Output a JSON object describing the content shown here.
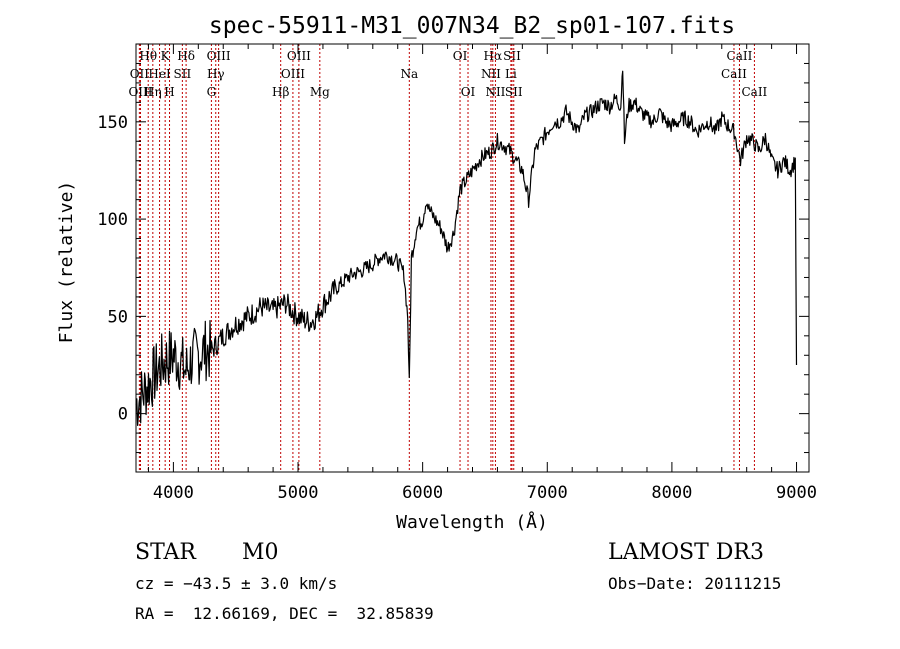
{
  "chart_data": {
    "type": "line",
    "title": "spec-55911-M31_007N34_B2_sp01-107.fits",
    "xlabel": "Wavelength (Å)",
    "ylabel": "Flux (relative)",
    "xlim": [
      3700,
      9100
    ],
    "ylim": [
      -30,
      190
    ],
    "xticks": [
      4000,
      5000,
      6000,
      7000,
      8000,
      9000
    ],
    "yticks": [
      0,
      50,
      100,
      150
    ],
    "series": [
      {
        "name": "flux",
        "x": [
          3700,
          3750,
          3800,
          3850,
          3900,
          3950,
          4000,
          4050,
          4100,
          4150,
          4200,
          4250,
          4300,
          4350,
          4400,
          4450,
          4500,
          4550,
          4600,
          4650,
          4700,
          4750,
          4800,
          4850,
          4900,
          4950,
          5000,
          5050,
          5100,
          5150,
          5200,
          5250,
          5300,
          5350,
          5400,
          5450,
          5500,
          5550,
          5600,
          5650,
          5700,
          5750,
          5800,
          5850,
          5880,
          5893,
          5910,
          5950,
          6000,
          6030,
          6050,
          6100,
          6150,
          6200,
          6250,
          6300,
          6350,
          6400,
          6450,
          6500,
          6550,
          6600,
          6650,
          6700,
          6750,
          6800,
          6850,
          6900,
          6950,
          7000,
          7050,
          7100,
          7150,
          7200,
          7250,
          7300,
          7350,
          7400,
          7450,
          7500,
          7550,
          7590,
          7605,
          7620,
          7650,
          7700,
          7750,
          7800,
          7850,
          7900,
          7950,
          8000,
          8050,
          8100,
          8150,
          8200,
          8250,
          8300,
          8350,
          8400,
          8450,
          8500,
          8550,
          8600,
          8650,
          8700,
          8750,
          8800,
          8850,
          8900,
          8950,
          8990,
          9000
        ],
        "y": [
          5,
          10,
          15,
          20,
          25,
          28,
          30,
          27,
          22,
          28,
          30,
          33,
          32,
          36,
          40,
          43,
          46,
          48,
          50,
          52,
          55,
          54,
          53,
          55,
          57,
          53,
          50,
          48,
          47,
          50,
          56,
          60,
          64,
          67,
          70,
          72,
          73,
          75,
          77,
          80,
          82,
          80,
          78,
          72,
          50,
          15,
          80,
          95,
          100,
          110,
          105,
          100,
          95,
          85,
          93,
          115,
          120,
          125,
          130,
          133,
          135,
          140,
          138,
          135,
          130,
          125,
          110,
          135,
          140,
          145,
          150,
          150,
          155,
          150,
          145,
          153,
          155,
          158,
          160,
          158,
          162,
          158,
          180,
          140,
          158,
          160,
          155,
          152,
          150,
          155,
          150,
          148,
          150,
          152,
          150,
          145,
          148,
          150,
          145,
          152,
          148,
          145,
          130,
          142,
          140,
          135,
          142,
          130,
          125,
          130,
          125,
          130,
          25
        ]
      }
    ],
    "lines": [
      {
        "name": "Hθ",
        "wl": 3798,
        "label_row": 1
      },
      {
        "name": "OII",
        "wl": 3727,
        "label_row": 2
      },
      {
        "name": "OIII",
        "wl": 3736,
        "label_row": 3
      },
      {
        "name": "K",
        "wl": 3934,
        "label_row": 1
      },
      {
        "name": "HeI",
        "wl": 3889,
        "label_row": 2
      },
      {
        "name": "Hη",
        "wl": 3835,
        "label_row": 3
      },
      {
        "name": "SII",
        "wl": 4072,
        "label_row": 2
      },
      {
        "name": "H",
        "wl": 3969,
        "label_row": 3
      },
      {
        "name": "Hδ",
        "wl": 4102,
        "label_row": 1
      },
      {
        "name": "OIII",
        "wl": 4363,
        "label_row": 1
      },
      {
        "name": "Hγ",
        "wl": 4340,
        "label_row": 2
      },
      {
        "name": "G",
        "wl": 4305,
        "label_row": 3
      },
      {
        "name": "OIII",
        "wl": 5007,
        "label_row": 1
      },
      {
        "name": "OIII",
        "wl": 4959,
        "label_row": 2
      },
      {
        "name": "Hβ",
        "wl": 4861,
        "label_row": 3
      },
      {
        "name": "Mg",
        "wl": 5175,
        "label_row": 3
      },
      {
        "name": "Na",
        "wl": 5893,
        "label_row": 2
      },
      {
        "name": "OI",
        "wl": 6300,
        "label_row": 1
      },
      {
        "name": "OI",
        "wl": 6364,
        "label_row": 3
      },
      {
        "name": "Hα",
        "wl": 6563,
        "label_row": 1
      },
      {
        "name": "SII",
        "wl": 6717,
        "label_row": 1
      },
      {
        "name": "NII",
        "wl": 6548,
        "label_row": 2
      },
      {
        "name": "Li",
        "wl": 6708,
        "label_row": 2
      },
      {
        "name": "NII",
        "wl": 6584,
        "label_row": 3
      },
      {
        "name": "SII",
        "wl": 6731,
        "label_row": 3
      },
      {
        "name": "CaII",
        "wl": 8542,
        "label_row": 1
      },
      {
        "name": "CaII",
        "wl": 8498,
        "label_row": 2
      },
      {
        "name": "CaII",
        "wl": 8662,
        "label_row": 3
      }
    ]
  },
  "info": {
    "classification": "STAR",
    "subclass": "M0",
    "survey": "LAMOST DR3",
    "cz": "cz = −43.5 ± 3.0 km/s",
    "obs_date": "Obs−Date: 20111215",
    "coords": "RA =  12.66169, DEC =  32.85839"
  }
}
